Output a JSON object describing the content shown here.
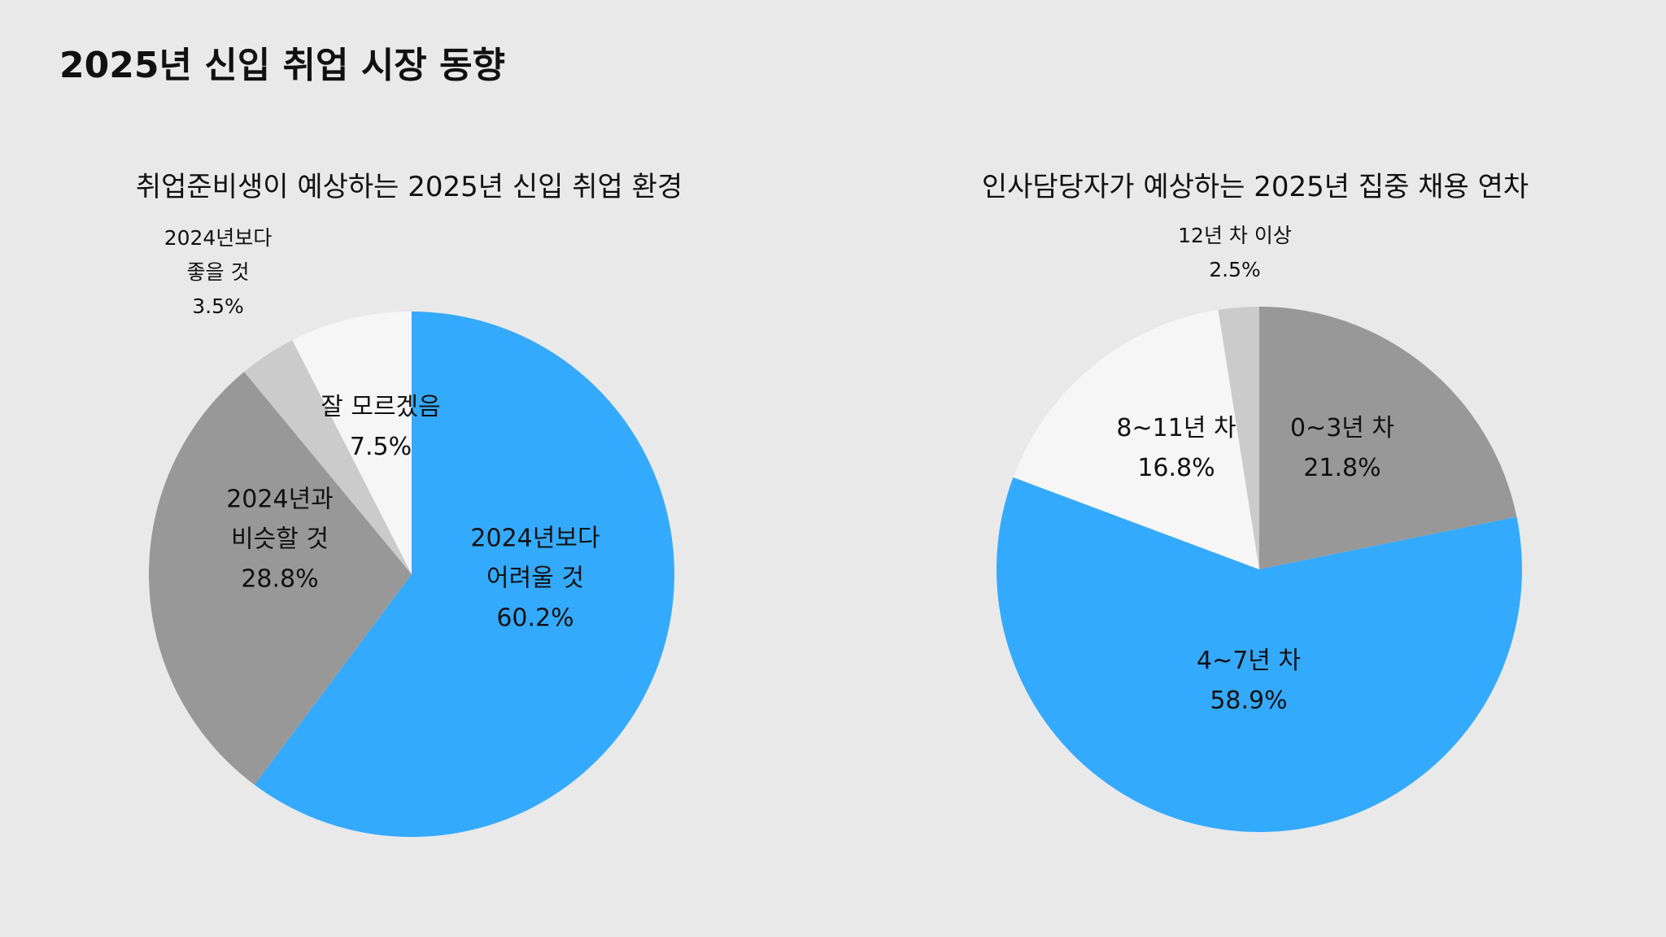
{
  "page": {
    "title": "2025년 신입 취업 시장 동향"
  },
  "chart_data": [
    {
      "type": "pie",
      "title": "취업준비생이 예상하는 2025년 신입 취업 환경",
      "start": "top",
      "direction": "clockwise",
      "slices": [
        {
          "label": "2024년보다 어려울 것",
          "lines": [
            "2024년보다",
            "어려울 것"
          ],
          "value": 60.2,
          "value_label": "60.2%",
          "color": "#34aaff",
          "label_placement": "inside"
        },
        {
          "label": "2024년과 비슷할 것",
          "lines": [
            "2024년과",
            "비슷할 것"
          ],
          "value": 28.8,
          "value_label": "28.8%",
          "color": "#989898",
          "label_placement": "inside"
        },
        {
          "label": "2024년보다 좋을 것",
          "lines": [
            "2024년보다",
            "좋을 것"
          ],
          "value": 3.5,
          "value_label": "3.5%",
          "color": "#cbcbcb",
          "label_placement": "outside"
        },
        {
          "label": "잘 모르겠음",
          "lines": [
            "잘 모르겠음"
          ],
          "value": 7.5,
          "value_label": "7.5%",
          "color": "#f6f6f6",
          "label_placement": "inside"
        }
      ]
    },
    {
      "type": "pie",
      "title": "인사담당자가 예상하는 2025년 집중 채용 연차",
      "start": "top",
      "direction": "clockwise",
      "slices": [
        {
          "label": "0~3년 차",
          "lines": [
            "0~3년 차"
          ],
          "value": 21.8,
          "value_label": "21.8%",
          "color": "#989898",
          "label_placement": "inside"
        },
        {
          "label": "4~7년 차",
          "lines": [
            "4~7년 차"
          ],
          "value": 58.9,
          "value_label": "58.9%",
          "color": "#34aaff",
          "label_placement": "inside"
        },
        {
          "label": "8~11년 차",
          "lines": [
            "8~11년 차"
          ],
          "value": 16.8,
          "value_label": "16.8%",
          "color": "#f6f6f6",
          "label_placement": "inside"
        },
        {
          "label": "12년 차 이상",
          "lines": [
            "12년 차 이상"
          ],
          "value": 2.5,
          "value_label": "2.5%",
          "color": "#cbcbcb",
          "label_placement": "outside"
        }
      ]
    }
  ]
}
